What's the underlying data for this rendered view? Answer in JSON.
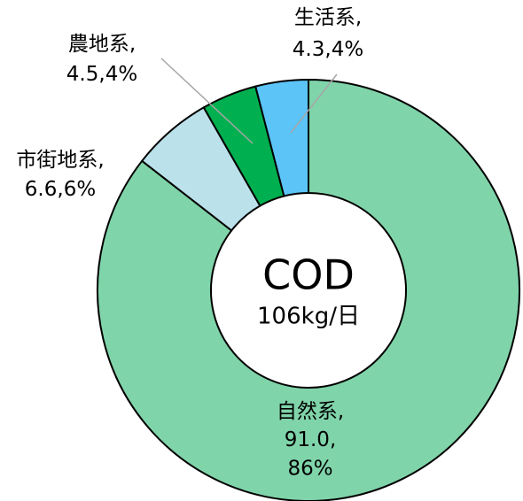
{
  "chart_data": {
    "type": "donut",
    "center_title": "COD",
    "center_subtitle": "106kg/日",
    "categories": [
      "自然系",
      "市街地系",
      "農地系",
      "生活系"
    ],
    "values": [
      91.0,
      6.6,
      4.5,
      4.3
    ],
    "value_labels": [
      "91.0",
      "6.6",
      "4.5",
      "4.3"
    ],
    "percent_labels": [
      "86%",
      "6%",
      "4%",
      "4%"
    ],
    "label_separator": ",",
    "colors": [
      "#80d4aa",
      "#bbe1eb",
      "#00b050",
      "#5cc4f7"
    ]
  }
}
